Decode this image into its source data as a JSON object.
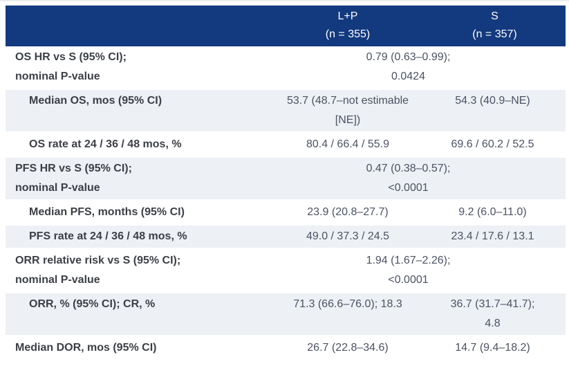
{
  "header": {
    "label_col": "",
    "col_lp": "L+P\n(n = 355)",
    "col_s": "S\n(n = 357)"
  },
  "rows": [
    {
      "label": "OS HR vs S (95% CI);\nnominal P-value",
      "span_value": "0.79 (0.63–0.99);\n0.0424"
    },
    {
      "label": "Median OS, mos (95% CI)",
      "lp": "53.7 (48.7–not estimable\n[NE])",
      "s": "54.3 (40.9–NE)"
    },
    {
      "label": "OS rate at 24 / 36 / 48 mos, %",
      "lp": "80.4 / 66.4 / 55.9",
      "s": "69.6 / 60.2 / 52.5"
    },
    {
      "label": "PFS HR vs S (95% CI);\nnominal P-value",
      "span_value": "0.47 (0.38–0.57);\n<0.0001"
    },
    {
      "label": "Median PFS, months (95% CI)",
      "lp": "23.9 (20.8–27.7)",
      "s": "9.2 (6.0–11.0)"
    },
    {
      "label": "PFS rate at 24 / 36 / 48 mos, %",
      "lp": "49.0 / 37.3 / 24.5",
      "s": "23.4 / 17.6 / 13.1"
    },
    {
      "label": "ORR relative risk vs S (95% CI);\nnominal P-value",
      "span_value": "1.94 (1.67–2.26);\n<0.0001"
    },
    {
      "label": "ORR, % (95% CI); CR, %",
      "lp": "71.3 (66.6–76.0); 18.3",
      "s": "36.7 (31.7–41.7);\n4.8"
    },
    {
      "label": "Median DOR, mos (95% CI)",
      "lp": "26.7 (22.8–34.6)",
      "s": "14.7 (9.4–18.2)"
    }
  ],
  "colors": {
    "header_bg": "#13397e",
    "header_text": "#ffffff",
    "row_alt_bg": "#edf0f4",
    "label_text": "#3c4046",
    "value_text": "#4b5263"
  }
}
